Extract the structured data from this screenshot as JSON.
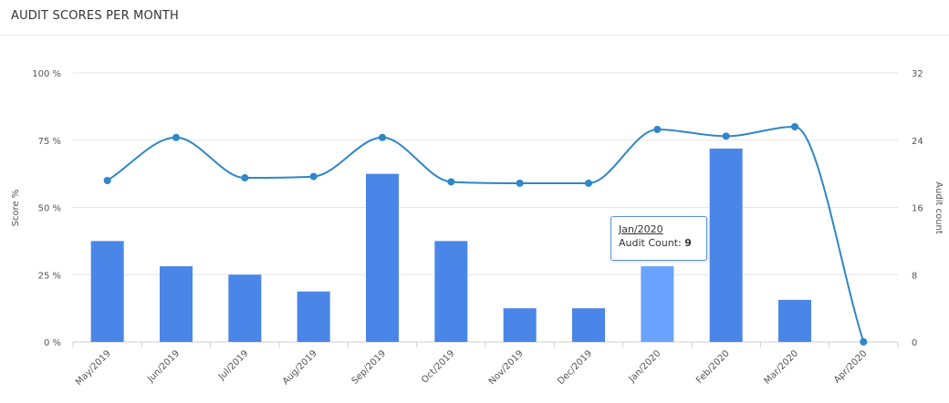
{
  "panel": {
    "title": "AUDIT SCORES PER MONTH"
  },
  "chart_data": {
    "type": "bar",
    "categories": [
      "May/2019",
      "Jun/2019",
      "Jul/2019",
      "Aug/2019",
      "Sep/2019",
      "Oct/2019",
      "Nov/2019",
      "Dec/2019",
      "Jan/2020",
      "Feb/2020",
      "Mar/2020",
      "Apr/2020"
    ],
    "series": [
      {
        "type": "bar",
        "axis": "right",
        "values": [
          12,
          9,
          8,
          6,
          20,
          12,
          4,
          4,
          9,
          23,
          5,
          0
        ]
      },
      {
        "type": "line",
        "axis": "left",
        "values": [
          60,
          76,
          61,
          61.5,
          76,
          59.5,
          59,
          59,
          79,
          76.5,
          80,
          0
        ]
      }
    ],
    "y_left": {
      "label": "Score %",
      "ticks": [
        "0 %",
        "25 %",
        "50 %",
        "75 %",
        "100 %"
      ],
      "range": [
        0,
        100
      ]
    },
    "y_right": {
      "label": "Audit count",
      "ticks": [
        "0",
        "8",
        "16",
        "24",
        "32"
      ],
      "range": [
        0,
        32
      ]
    },
    "highlight_index": 8,
    "grid": true,
    "colors": {
      "bar": "#4a86e8",
      "bar_highlight": "#6aa3ff",
      "line": "#2f86c8",
      "grid": "#e6e6e6"
    }
  },
  "tooltip": {
    "date": "Jan/2020",
    "label": "Audit Count:",
    "value": "9"
  }
}
